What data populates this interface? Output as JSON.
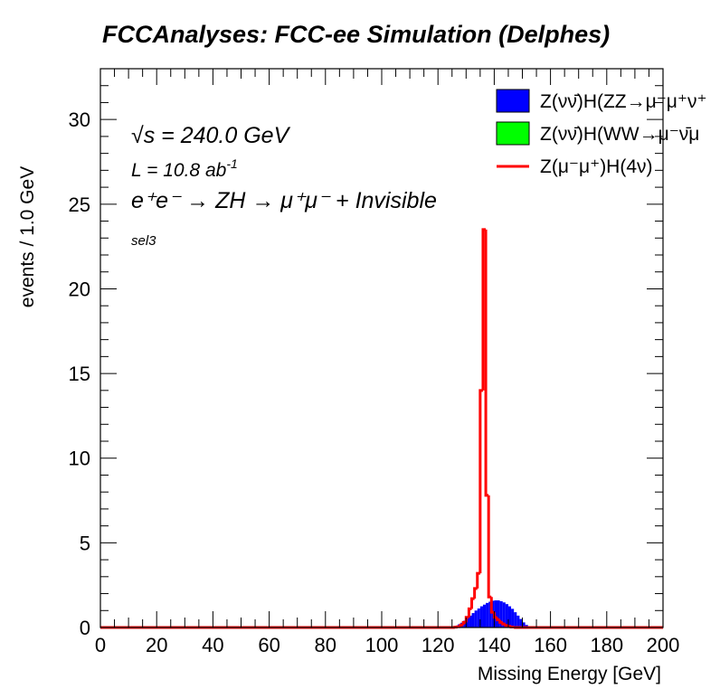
{
  "chart_data": {
    "type": "histogram",
    "title": "FCCAnalyses: FCC-ee Simulation (Delphes)",
    "xlabel": "Missing Energy [GeV]",
    "ylabel": "events / 1.0 GeV",
    "xlim": [
      0,
      200
    ],
    "ylim": [
      0,
      33
    ],
    "xticks": [
      "0",
      "20",
      "40",
      "60",
      "80",
      "100",
      "120",
      "140",
      "160",
      "180",
      "200"
    ],
    "yticks": [
      "0",
      "5",
      "10",
      "15",
      "20",
      "25",
      "30"
    ],
    "grid": false,
    "legend_position": "top-right",
    "annotations": {
      "sqrt_s_symbol": "√s",
      "sqrt_s_rest": " = 240.0 GeV",
      "lumi_base": "L = 10.8 ab",
      "lumi_exp": "-1",
      "process": "e⁺e⁻ → ZH → μ⁺μ⁻ + Invisible",
      "selection": "sel3"
    },
    "series": [
      {
        "name": "Z(νν̄)H(ZZ→μ⁻μ⁺ν⁺",
        "style": "filled",
        "color": "#0000ff",
        "bin_width": 1,
        "x_start": 124,
        "values": [
          0.02,
          0.05,
          0.1,
          0.18,
          0.28,
          0.4,
          0.55,
          0.7,
          0.85,
          1.0,
          1.12,
          1.25,
          1.35,
          1.45,
          1.52,
          1.58,
          1.6,
          1.6,
          1.55,
          1.48,
          1.38,
          1.25,
          1.1,
          0.9,
          0.7,
          0.5,
          0.3,
          0.15,
          0.05
        ]
      },
      {
        "name": "Z(νν̄)H(WW→μ⁻ν̄μ",
        "style": "filled",
        "color": "#00ff00",
        "bin_width": 1,
        "x_start": 124,
        "values": []
      },
      {
        "name": "Z(μ⁻μ⁺)H(4ν)",
        "style": "line",
        "color": "#ff0000",
        "bin_width": 1,
        "x_start": 126,
        "values": [
          0.02,
          0.05,
          0.15,
          0.3,
          0.6,
          1.1,
          1.7,
          2.3,
          3.2,
          14.0,
          23.5,
          7.8,
          1.8,
          0.9,
          0.6,
          0.45,
          0.3,
          0.2,
          0.12,
          0.07,
          0.03
        ]
      }
    ]
  }
}
